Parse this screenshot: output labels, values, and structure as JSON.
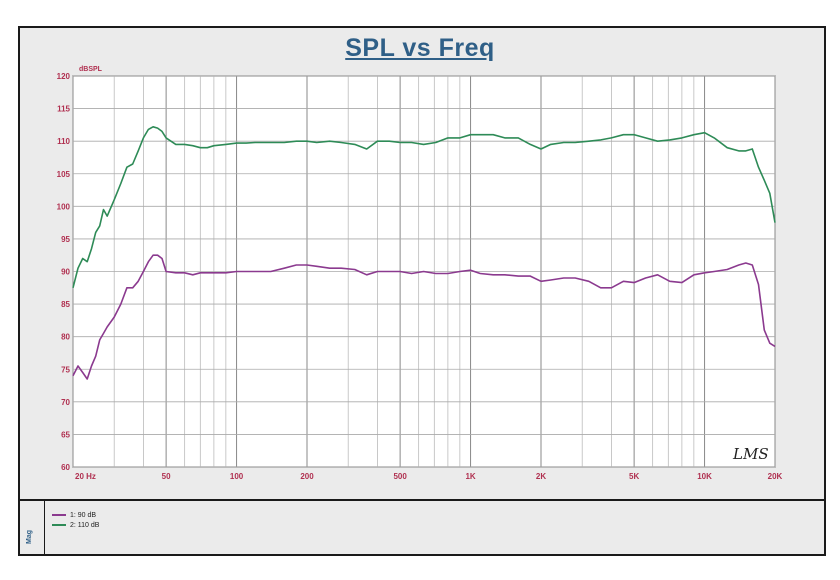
{
  "title": "SPL vs Freq",
  "y_unit": "dBSPL",
  "legend_header": "Mag",
  "signature": "LMS",
  "colors": {
    "series1": "#8b3a8f",
    "series2": "#2e8b57",
    "tick_labels": "#b03050",
    "title": "#2f5f87"
  },
  "chart_data": {
    "type": "line",
    "title": "SPL vs Freq",
    "xlabel": "",
    "ylabel": "dBSPL",
    "xscale": "log",
    "xlim": [
      20,
      20000
    ],
    "ylim": [
      60,
      120
    ],
    "x_ticks": [
      {
        "value": 20,
        "label": "20  Hz"
      },
      {
        "value": 50,
        "label": "50"
      },
      {
        "value": 100,
        "label": "100"
      },
      {
        "value": 200,
        "label": "200"
      },
      {
        "value": 500,
        "label": "500"
      },
      {
        "value": 1000,
        "label": "1K"
      },
      {
        "value": 2000,
        "label": "2K"
      },
      {
        "value": 5000,
        "label": "5K"
      },
      {
        "value": 10000,
        "label": "10K"
      },
      {
        "value": 20000,
        "label": "20K"
      }
    ],
    "y_ticks": [
      60,
      65,
      70,
      75,
      80,
      85,
      90,
      95,
      100,
      105,
      110,
      115,
      120
    ],
    "grid": true,
    "legend_position": "bottom-left",
    "series": [
      {
        "name": "1: 90 dB",
        "x": [
          20,
          21,
          22,
          23,
          24,
          25,
          26,
          27,
          28,
          30,
          32,
          34,
          36,
          38,
          40,
          42,
          44,
          46,
          48,
          50,
          55,
          60,
          65,
          70,
          75,
          80,
          90,
          100,
          110,
          120,
          140,
          160,
          180,
          200,
          220,
          250,
          280,
          320,
          360,
          400,
          450,
          500,
          560,
          630,
          710,
          800,
          900,
          1000,
          1100,
          1250,
          1400,
          1600,
          1800,
          2000,
          2200,
          2500,
          2800,
          3200,
          3600,
          4000,
          4500,
          5000,
          5600,
          6300,
          7100,
          8000,
          9000,
          10000,
          11000,
          12500,
          14000,
          15000,
          16000,
          17000,
          18000,
          19000,
          20000
        ],
        "y": [
          74,
          75.5,
          74.5,
          73.5,
          75.5,
          77,
          79.5,
          80.5,
          81.5,
          83,
          85,
          87.5,
          87.5,
          88.5,
          90,
          91.5,
          92.5,
          92.5,
          92,
          90,
          89.8,
          89.8,
          89.5,
          89.8,
          89.8,
          89.8,
          89.8,
          90,
          90,
          90,
          90,
          90.5,
          91,
          91,
          90.8,
          90.5,
          90.5,
          90.3,
          89.5,
          90,
          90,
          90,
          89.7,
          90,
          89.7,
          89.7,
          90,
          90.2,
          89.7,
          89.5,
          89.5,
          89.3,
          89.3,
          88.5,
          88.7,
          89,
          89,
          88.5,
          87.5,
          87.5,
          88.5,
          88.3,
          89,
          89.5,
          88.5,
          88.3,
          89.5,
          89.8,
          90,
          90.3,
          91,
          91.3,
          91,
          88,
          81,
          79,
          78.5
        ]
      },
      {
        "name": "2: 110 dB",
        "x": [
          20,
          21,
          22,
          23,
          24,
          25,
          26,
          27,
          28,
          30,
          32,
          34,
          36,
          38,
          40,
          42,
          44,
          46,
          48,
          50,
          55,
          60,
          65,
          70,
          75,
          80,
          90,
          100,
          110,
          120,
          140,
          160,
          180,
          200,
          220,
          250,
          280,
          320,
          360,
          400,
          450,
          500,
          560,
          630,
          710,
          800,
          900,
          1000,
          1100,
          1250,
          1400,
          1600,
          1800,
          2000,
          2200,
          2500,
          2800,
          3200,
          3600,
          4000,
          4500,
          5000,
          5600,
          6300,
          7100,
          8000,
          9000,
          10000,
          11000,
          12500,
          14000,
          15000,
          16000,
          17000,
          18000,
          19000,
          20000
        ],
        "y": [
          87.5,
          90.5,
          92,
          91.5,
          93.5,
          96,
          97,
          99.5,
          98.5,
          101,
          103.5,
          106,
          106.5,
          108.5,
          110.5,
          111.8,
          112.2,
          112,
          111.5,
          110.5,
          109.5,
          109.5,
          109.3,
          109,
          109,
          109.3,
          109.5,
          109.7,
          109.7,
          109.8,
          109.8,
          109.8,
          110,
          110,
          109.8,
          110,
          109.8,
          109.5,
          108.8,
          110,
          110,
          109.8,
          109.8,
          109.5,
          109.8,
          110.5,
          110.5,
          111,
          111,
          111,
          110.5,
          110.5,
          109.5,
          108.8,
          109.5,
          109.8,
          109.8,
          110,
          110.2,
          110.5,
          111,
          111,
          110.5,
          110,
          110.2,
          110.5,
          111,
          111.3,
          110.5,
          109,
          108.5,
          108.5,
          108.8,
          106,
          104,
          102,
          97.5
        ]
      }
    ]
  }
}
